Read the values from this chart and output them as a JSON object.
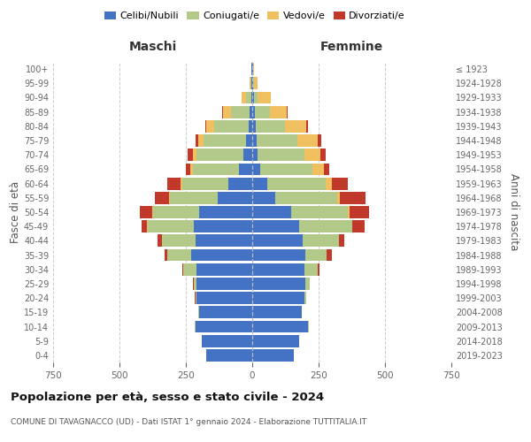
{
  "age_groups": [
    "0-4",
    "5-9",
    "10-14",
    "15-19",
    "20-24",
    "25-29",
    "30-34",
    "35-39",
    "40-44",
    "45-49",
    "50-54",
    "55-59",
    "60-64",
    "65-69",
    "70-74",
    "75-79",
    "80-84",
    "85-89",
    "90-94",
    "95-99",
    "100+"
  ],
  "birth_years": [
    "2019-2023",
    "2014-2018",
    "2009-2013",
    "2004-2008",
    "1999-2003",
    "1994-1998",
    "1989-1993",
    "1984-1988",
    "1979-1983",
    "1974-1978",
    "1969-1973",
    "1964-1968",
    "1959-1963",
    "1954-1958",
    "1949-1953",
    "1944-1948",
    "1939-1943",
    "1934-1938",
    "1929-1933",
    "1924-1928",
    "≤ 1923"
  ],
  "colors": {
    "celibi": "#4472C4",
    "coniugati": "#B3C98A",
    "vedovi": "#F0C060",
    "divorziati": "#C0392B"
  },
  "maschi": {
    "celibi": [
      175,
      190,
      215,
      200,
      210,
      210,
      210,
      230,
      215,
      220,
      200,
      130,
      90,
      50,
      35,
      25,
      15,
      10,
      5,
      3,
      2
    ],
    "coniugati": [
      0,
      1,
      2,
      3,
      5,
      10,
      50,
      90,
      125,
      175,
      175,
      180,
      175,
      175,
      175,
      160,
      130,
      70,
      20,
      5,
      1
    ],
    "vedovi": [
      0,
      0,
      0,
      0,
      0,
      0,
      0,
      0,
      1,
      1,
      2,
      3,
      5,
      10,
      15,
      20,
      30,
      30,
      15,
      2,
      0
    ],
    "divorziati": [
      0,
      0,
      0,
      0,
      1,
      2,
      5,
      10,
      15,
      20,
      45,
      55,
      50,
      15,
      20,
      10,
      3,
      2,
      0,
      0,
      0
    ]
  },
  "femmine": {
    "celibi": [
      155,
      175,
      210,
      185,
      195,
      200,
      195,
      200,
      190,
      175,
      145,
      85,
      55,
      30,
      20,
      15,
      12,
      10,
      5,
      3,
      2
    ],
    "coniugati": [
      0,
      1,
      2,
      3,
      8,
      15,
      50,
      80,
      135,
      200,
      215,
      235,
      220,
      195,
      175,
      155,
      110,
      55,
      15,
      3,
      1
    ],
    "vedovi": [
      0,
      0,
      0,
      0,
      0,
      0,
      0,
      0,
      1,
      3,
      5,
      10,
      25,
      45,
      60,
      75,
      80,
      65,
      50,
      15,
      3
    ],
    "divorziati": [
      0,
      0,
      0,
      0,
      1,
      3,
      8,
      20,
      20,
      45,
      75,
      95,
      60,
      20,
      20,
      15,
      8,
      3,
      1,
      0,
      0
    ]
  },
  "xlim": 750,
  "title": "Popolazione per età, sesso e stato civile - 2024",
  "subtitle": "COMUNE DI TAVAGNACCO (UD) - Dati ISTAT 1° gennaio 2024 - Elaborazione TUTTITALIA.IT",
  "ylabel_left": "Fasce di età",
  "ylabel_right": "Anni di nascita",
  "xlabel_maschi": "Maschi",
  "xlabel_femmine": "Femmine",
  "legend_labels": [
    "Celibi/Nubili",
    "Coniugati/e",
    "Vedovi/e",
    "Divorziati/e"
  ],
  "bg_color": "#FFFFFF",
  "grid_color": "#CCCCCC",
  "tick_color": "#666666"
}
